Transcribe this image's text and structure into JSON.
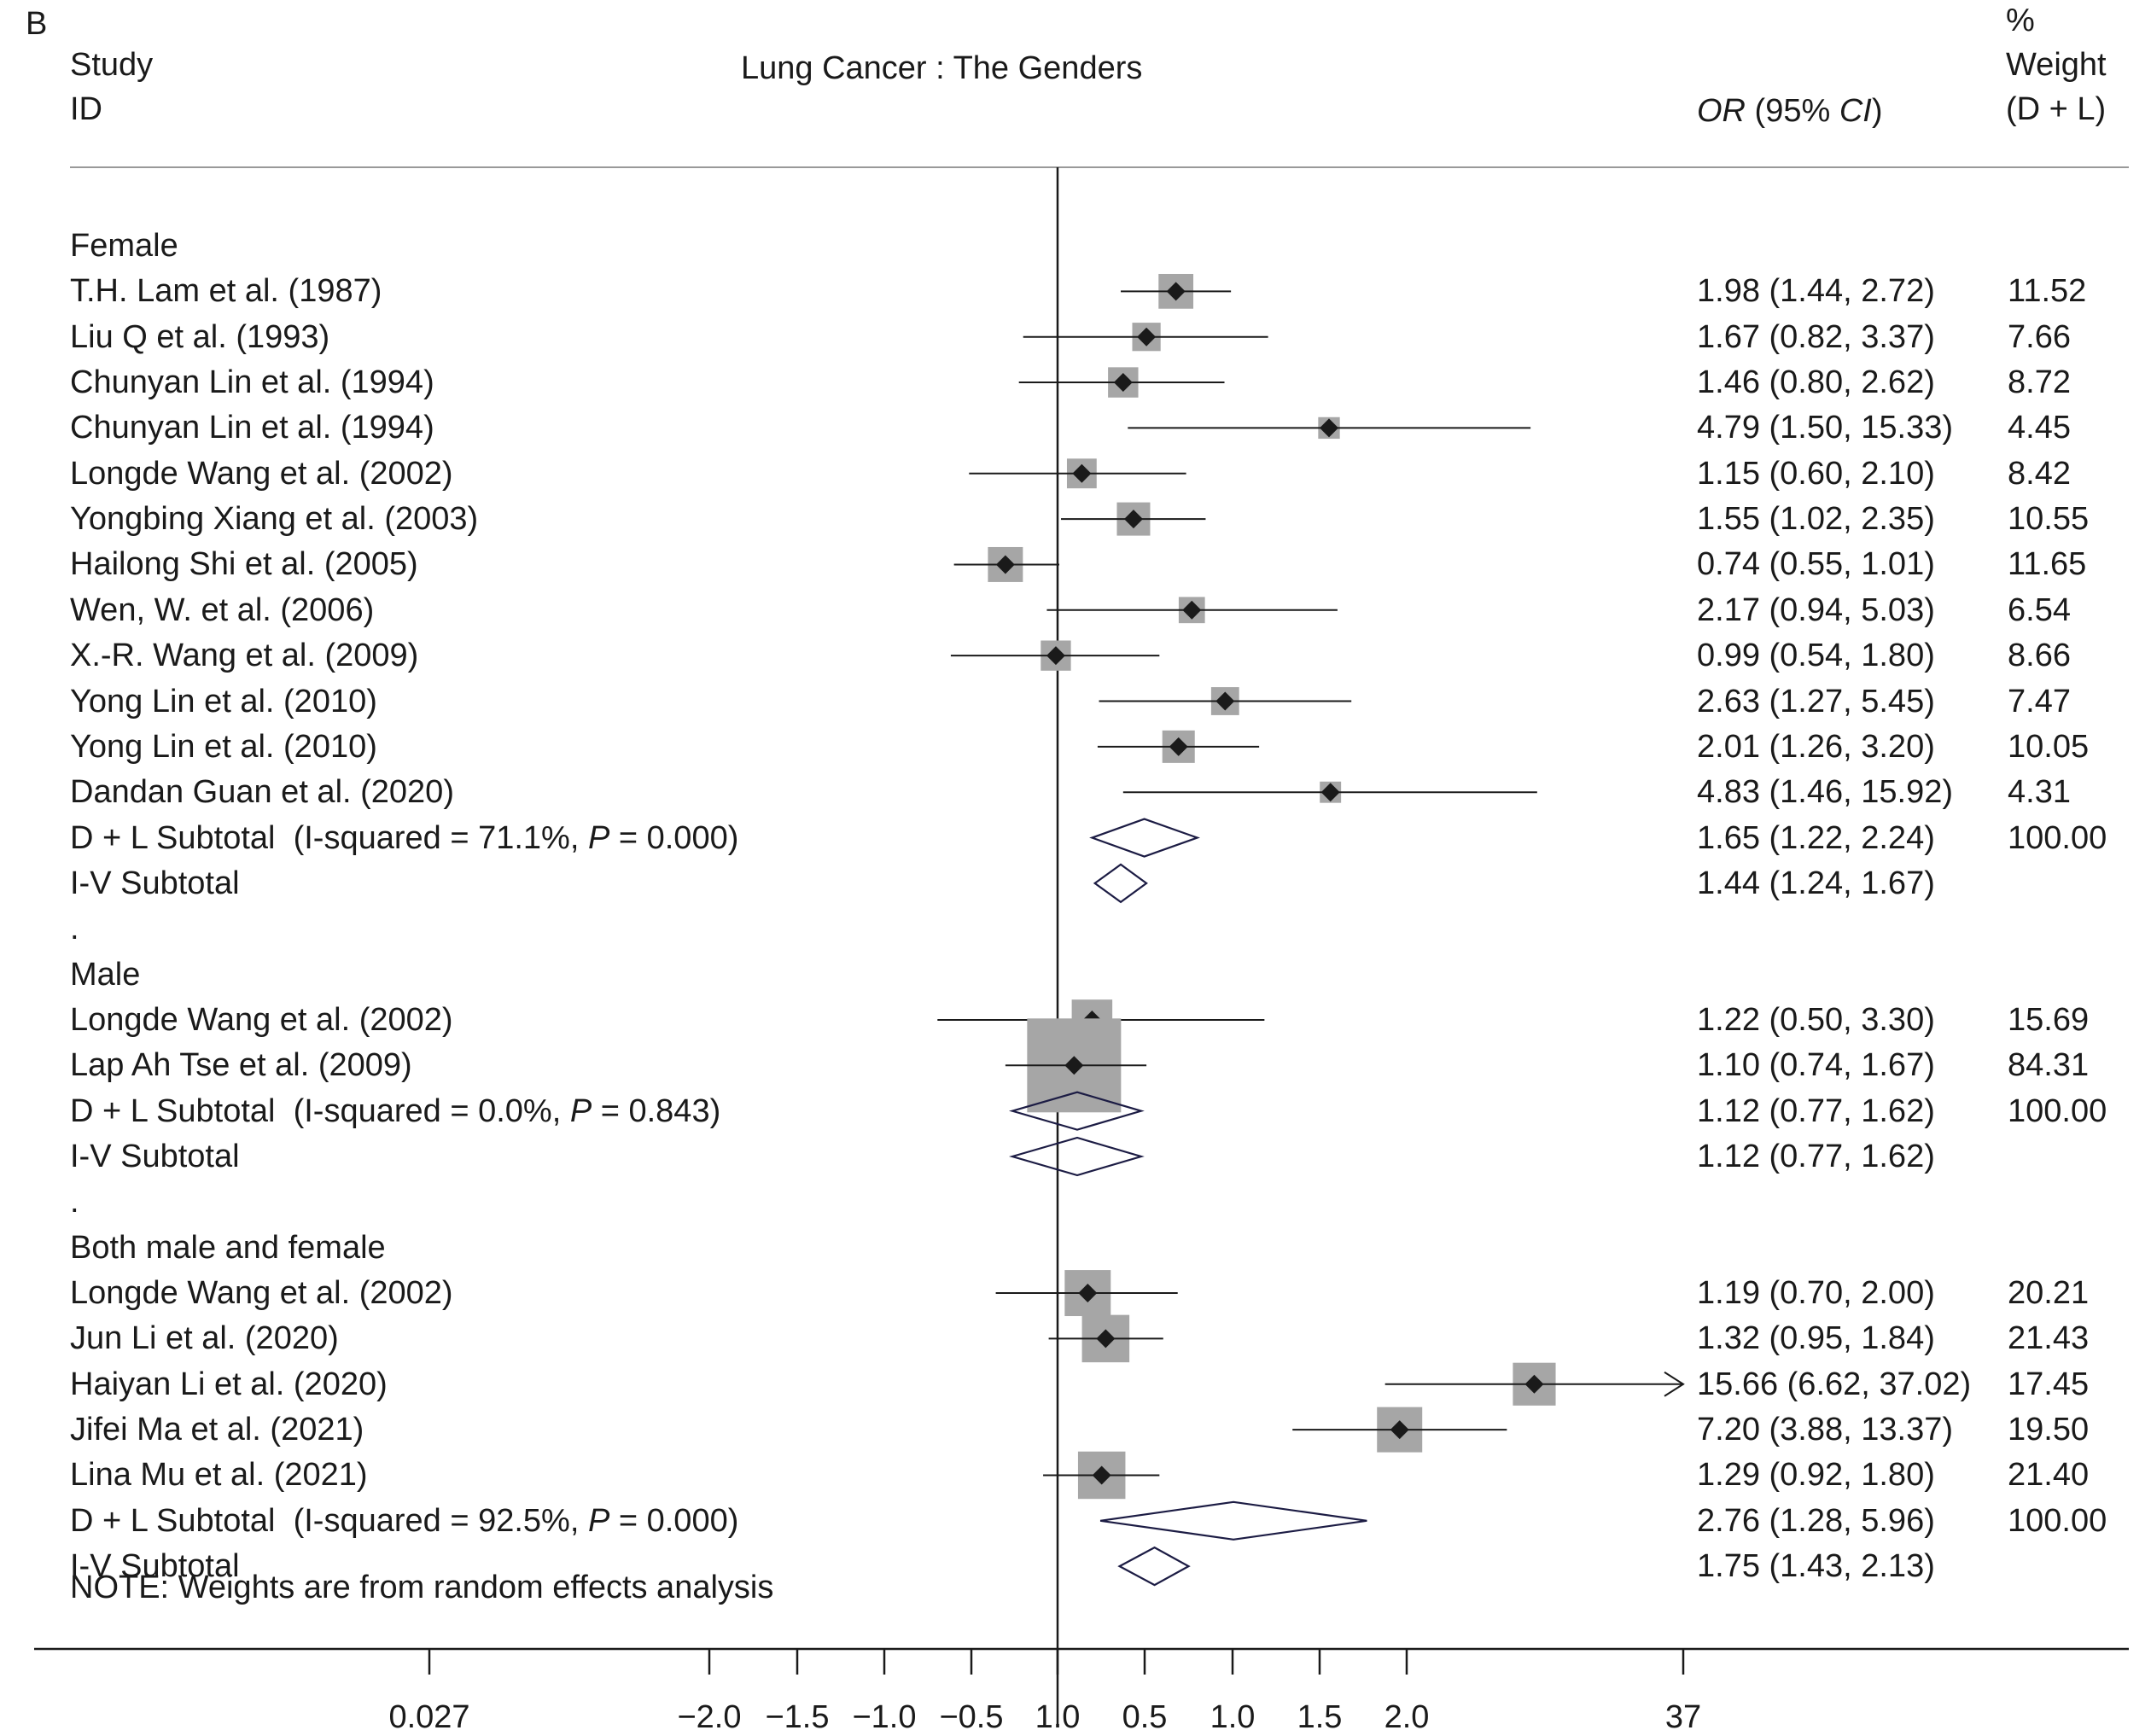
{
  "panel_label": "B",
  "header": {
    "study_col": [
      "Study",
      "ID"
    ],
    "title": "Lung Cancer : The Genders",
    "or_col": {
      "prefix": "OR",
      "mid": " (95% ",
      "ci": "CI",
      "suffix": ")"
    },
    "weight_col": [
      "%",
      "Weight",
      "(D + L)"
    ]
  },
  "note": "NOTE: Weights are from random effects analysis",
  "chart_data": {
    "type": "forest",
    "title": "Lung Cancer : The Genders",
    "null_line": 1.0,
    "x_ticks": [
      "0.027",
      "−2.0",
      "−1.5",
      "−1.0",
      "−0.5",
      "1.0",
      "0.5",
      "1.0",
      "1.5",
      "2.0",
      "37"
    ],
    "rows": [
      {
        "kind": "group",
        "label": "Female"
      },
      {
        "kind": "study",
        "label": "T.H. Lam et al. (1987)",
        "or": 1.98,
        "lo": 1.44,
        "hi": 2.72,
        "or_text": "1.98 (1.44, 2.72)",
        "weight": "11.52"
      },
      {
        "kind": "study",
        "label": "Liu Q et al. (1993)",
        "or": 1.67,
        "lo": 0.82,
        "hi": 3.37,
        "or_text": "1.67 (0.82, 3.37)",
        "weight": "7.66"
      },
      {
        "kind": "study",
        "label": "Chunyan Lin et al. (1994)",
        "or": 1.46,
        "lo": 0.8,
        "hi": 2.62,
        "or_text": "1.46 (0.80, 2.62)",
        "weight": "8.72"
      },
      {
        "kind": "study",
        "label": "Chunyan Lin et al. (1994)",
        "or": 4.79,
        "lo": 1.5,
        "hi": 15.33,
        "or_text": "4.79 (1.50, 15.33)",
        "weight": "4.45"
      },
      {
        "kind": "study",
        "label": "Longde Wang et al. (2002)",
        "or": 1.15,
        "lo": 0.6,
        "hi": 2.1,
        "or_text": "1.15 (0.60, 2.10)",
        "weight": "8.42"
      },
      {
        "kind": "study",
        "label": "Yongbing Xiang et al. (2003)",
        "or": 1.55,
        "lo": 1.02,
        "hi": 2.35,
        "or_text": "1.55 (1.02, 2.35)",
        "weight": "10.55"
      },
      {
        "kind": "study",
        "label": "Hailong Shi et al. (2005)",
        "or": 0.74,
        "lo": 0.55,
        "hi": 1.01,
        "or_text": "0.74 (0.55, 1.01)",
        "weight": "11.65"
      },
      {
        "kind": "study",
        "label": "Wen, W. et al. (2006)",
        "or": 2.17,
        "lo": 0.94,
        "hi": 5.03,
        "or_text": "2.17 (0.94, 5.03)",
        "weight": "6.54"
      },
      {
        "kind": "study",
        "label": "X.-R. Wang et al. (2009)",
        "or": 0.99,
        "lo": 0.54,
        "hi": 1.8,
        "or_text": "0.99 (0.54, 1.80)",
        "weight": "8.66"
      },
      {
        "kind": "study",
        "label": "Yong Lin et al. (2010)",
        "or": 2.63,
        "lo": 1.27,
        "hi": 5.45,
        "or_text": "2.63 (1.27, 5.45)",
        "weight": "7.47"
      },
      {
        "kind": "study",
        "label": "Yong Lin et al. (2010)",
        "or": 2.01,
        "lo": 1.26,
        "hi": 3.2,
        "or_text": "2.01 (1.26, 3.20)",
        "weight": "10.05"
      },
      {
        "kind": "study",
        "label": "Dandan Guan et al. (2020)",
        "or": 4.83,
        "lo": 1.46,
        "hi": 15.92,
        "or_text": "4.83 (1.46, 15.92)",
        "weight": "4.31"
      },
      {
        "kind": "subtotal",
        "label_pre": "D + L Subtotal  (I-squared = 71.1%, ",
        "label_p": "P",
        "label_post": " = 0.000)",
        "or": 1.65,
        "lo": 1.22,
        "hi": 2.24,
        "or_text": "1.65 (1.22, 2.24)",
        "weight": "100.00"
      },
      {
        "kind": "subtotal",
        "label_pre": "I-V Subtotal",
        "or": 1.44,
        "lo": 1.24,
        "hi": 1.67,
        "or_text": "1.44 (1.24, 1.67)",
        "weight": ""
      },
      {
        "kind": "spacer",
        "label": "."
      },
      {
        "kind": "group",
        "label": "Male"
      },
      {
        "kind": "study",
        "label": "Longde Wang et al. (2002)",
        "or": 1.22,
        "lo": 0.5,
        "hi": 3.3,
        "or_text": "1.22 (0.50, 3.30)",
        "weight": "15.69"
      },
      {
        "kind": "study",
        "label": "Lap Ah Tse et al. (2009)",
        "or": 1.1,
        "lo": 0.74,
        "hi": 1.67,
        "or_text": "1.10 (0.74, 1.67)",
        "weight": "84.31"
      },
      {
        "kind": "subtotal",
        "label_pre": "D + L Subtotal  (I-squared = 0.0%, ",
        "label_p": "P",
        "label_post": " = 0.843)",
        "or": 1.12,
        "lo": 0.77,
        "hi": 1.62,
        "or_text": "1.12 (0.77, 1.62)",
        "weight": "100.00"
      },
      {
        "kind": "subtotal",
        "label_pre": "I-V Subtotal",
        "or": 1.12,
        "lo": 0.77,
        "hi": 1.62,
        "or_text": "1.12 (0.77, 1.62)",
        "weight": ""
      },
      {
        "kind": "spacer",
        "label": "."
      },
      {
        "kind": "group",
        "label": "Both male and female"
      },
      {
        "kind": "study",
        "label": "Longde Wang et al. (2002)",
        "or": 1.19,
        "lo": 0.7,
        "hi": 2.0,
        "or_text": "1.19 (0.70, 2.00)",
        "weight": "20.21"
      },
      {
        "kind": "study",
        "label": "Jun Li et al. (2020)",
        "or": 1.32,
        "lo": 0.95,
        "hi": 1.84,
        "or_text": "1.32 (0.95, 1.84)",
        "weight": "21.43"
      },
      {
        "kind": "study",
        "label": "Haiyan Li et al. (2020)",
        "or": 15.66,
        "lo": 6.62,
        "hi": 37.02,
        "or_text": "15.66 (6.62, 37.02)",
        "weight": "17.45"
      },
      {
        "kind": "study",
        "label": "Jifei Ma et al. (2021)",
        "or": 7.2,
        "lo": 3.88,
        "hi": 13.37,
        "or_text": "7.20 (3.88, 13.37)",
        "weight": "19.50"
      },
      {
        "kind": "study",
        "label": "Lina Mu et al. (2021)",
        "or": 1.29,
        "lo": 0.92,
        "hi": 1.8,
        "or_text": "1.29 (0.92, 1.80)",
        "weight": "21.40"
      },
      {
        "kind": "subtotal",
        "label_pre": "D + L Subtotal  (I-squared = 92.5%, ",
        "label_p": "P",
        "label_post": " = 0.000)",
        "or": 2.76,
        "lo": 1.28,
        "hi": 5.96,
        "or_text": "2.76 (1.28, 5.96)",
        "weight": "100.00"
      },
      {
        "kind": "subtotal",
        "label_pre": "I-V Subtotal",
        "or": 1.75,
        "lo": 1.43,
        "hi": 2.13,
        "or_text": "1.75 (1.43, 2.13)",
        "weight": ""
      }
    ]
  }
}
